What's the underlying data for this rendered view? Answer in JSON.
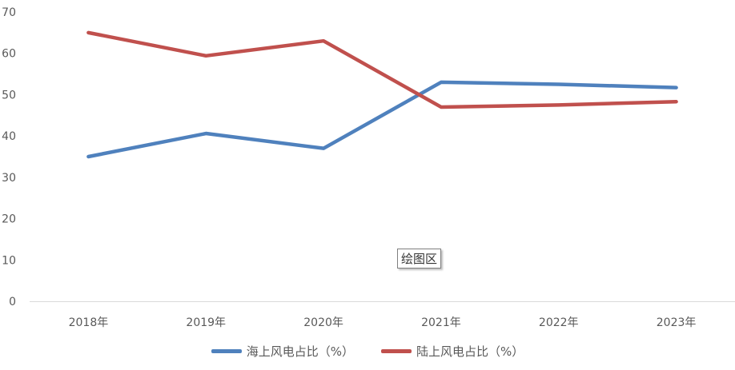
{
  "chart_data": {
    "type": "line",
    "categories": [
      "2018年",
      "2019年",
      "2020年",
      "2021年",
      "2022年",
      "2023年"
    ],
    "series": [
      {
        "name": "海上风电占比（%）",
        "values": [
          35,
          40.6,
          37,
          53,
          52.5,
          51.7
        ],
        "color": "#4f81bd"
      },
      {
        "name": "陆上风电占比（%）",
        "values": [
          65,
          59.4,
          63,
          47,
          47.5,
          48.3
        ],
        "color": "#c0504d"
      }
    ],
    "ylim": [
      0,
      70
    ],
    "yticks": [
      "0",
      "10",
      "20",
      "30",
      "40",
      "50",
      "60",
      "70"
    ],
    "grid": false,
    "legend_position": "bottom"
  },
  "tooltip": {
    "label": "绘图区"
  }
}
